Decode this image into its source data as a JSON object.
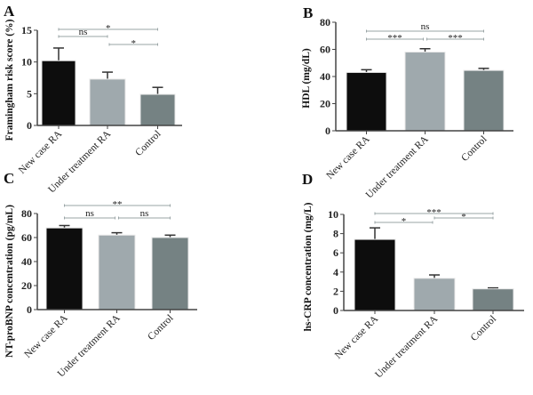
{
  "chart_data": [
    {
      "type": "bar",
      "panel": "A",
      "ylabel": "Framingham risk score (%)",
      "categories": [
        "New case RA",
        "Under treatment RA",
        "Control"
      ],
      "values": [
        10.2,
        7.3,
        4.9
      ],
      "error_upper": [
        12.2,
        8.4,
        6.0
      ],
      "ylim": [
        0,
        15
      ],
      "yticks": [
        0,
        5,
        10,
        15
      ],
      "significance": [
        {
          "from": 0,
          "to": 2,
          "label": "*",
          "level": 2
        },
        {
          "from": 0,
          "to": 1,
          "label": "ns",
          "level": 1
        },
        {
          "from": 1,
          "to": 2,
          "label": "*",
          "level": 0
        }
      ]
    },
    {
      "type": "bar",
      "panel": "B",
      "ylabel": "HDL (mg/dL)",
      "categories": [
        "New case RA",
        "Under treatment RA",
        "Control"
      ],
      "values": [
        43,
        58,
        44.5
      ],
      "error_upper": [
        45,
        60.5,
        46
      ],
      "ylim": [
        0,
        80
      ],
      "yticks": [
        0,
        20,
        40,
        60,
        80
      ],
      "significance": [
        {
          "from": 0,
          "to": 2,
          "label": "ns",
          "level": 1
        },
        {
          "from": 0,
          "to": 1,
          "label": "***",
          "level": 0
        },
        {
          "from": 1,
          "to": 2,
          "label": "***",
          "level": 0
        }
      ]
    },
    {
      "type": "bar",
      "panel": "C",
      "ylabel": "NT-proBNP concentration (pg/mL)",
      "categories": [
        "New case RA",
        "Under treatment RA",
        "Control"
      ],
      "values": [
        68,
        62,
        60
      ],
      "error_upper": [
        70,
        64,
        62
      ],
      "ylim": [
        0,
        80
      ],
      "yticks": [
        0,
        20,
        40,
        60,
        80
      ],
      "significance": [
        {
          "from": 0,
          "to": 2,
          "label": "**",
          "level": 1
        },
        {
          "from": 0,
          "to": 1,
          "label": "ns",
          "level": 0
        },
        {
          "from": 1,
          "to": 2,
          "label": "ns",
          "level": 0
        }
      ]
    },
    {
      "type": "bar",
      "panel": "D",
      "ylabel": "hs-CRP concentration (mg/L)",
      "categories": [
        "New case RA",
        "Under treatment RA",
        "Control"
      ],
      "values": [
        7.4,
        3.35,
        2.25
      ],
      "error_upper": [
        8.6,
        3.7,
        2.35
      ],
      "ylim": [
        0,
        10
      ],
      "yticks": [
        0,
        2,
        4,
        6,
        8,
        10
      ],
      "significance": [
        {
          "from": 0,
          "to": 2,
          "label": "***",
          "level": 2
        },
        {
          "from": 0,
          "to": 1,
          "label": "*",
          "level": 0
        },
        {
          "from": 1,
          "to": 2,
          "label": "*",
          "level": 1
        }
      ]
    }
  ],
  "colors": {
    "bars": [
      "#0d0d0d",
      "#9fa9ad",
      "#758283"
    ],
    "sig_lines": "#9aa4a6"
  }
}
